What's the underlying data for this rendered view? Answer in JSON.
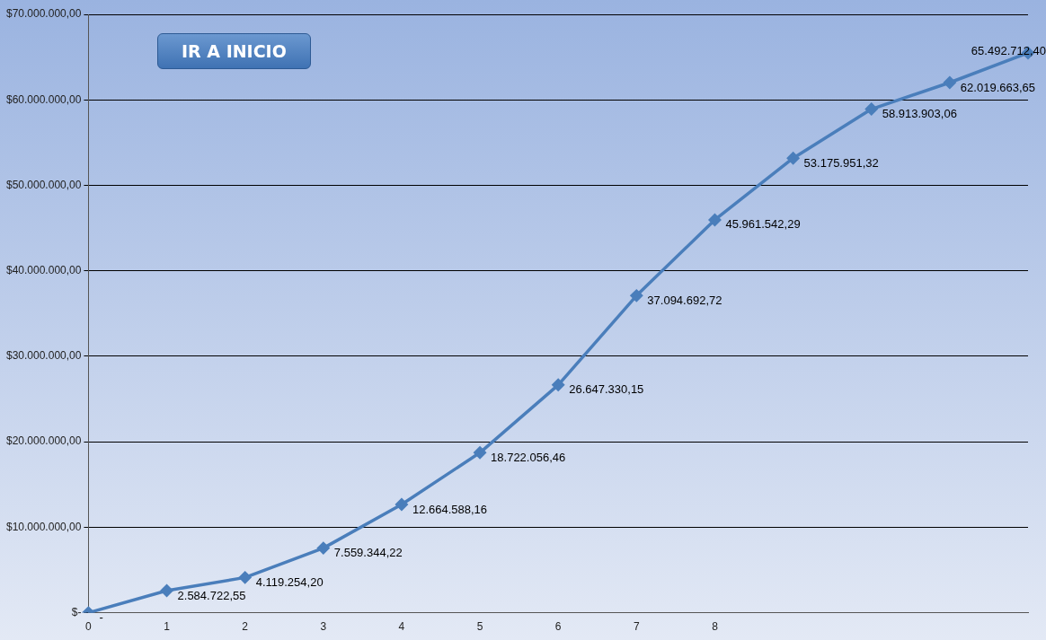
{
  "chart_data": {
    "type": "line",
    "categories": [
      "0",
      "1",
      "2",
      "3",
      "4",
      "5",
      "6",
      "7",
      "8",
      null,
      null,
      null,
      null
    ],
    "series": [
      {
        "color": "#4a7ebb",
        "values": [
          0,
          2584722.55,
          4119254.2,
          7559344.22,
          12664588.16,
          18722056.46,
          26647330.15,
          37094692.72,
          45961542.29,
          53175951.32,
          58913903.06,
          62019663.65,
          65492712.4
        ],
        "value_labels": [
          "-",
          "2.584.722,55",
          "4.119.254,20",
          "7.559.344,22",
          "12.664.588,16",
          "18.722.056,46",
          "26.647.330,15",
          "37.094.692,72",
          "45.961.542,29",
          "53.175.951,32",
          "58.913.903,06",
          "62.019.663,65",
          "65.492.712,40"
        ]
      }
    ],
    "ylim": [
      0,
      70000000
    ],
    "yticks": [
      {
        "value": 0,
        "label": "$-"
      },
      {
        "value": 10000000,
        "label": "$10.000.000,00"
      },
      {
        "value": 20000000,
        "label": "$20.000.000,00"
      },
      {
        "value": 30000000,
        "label": "$30.000.000,00"
      },
      {
        "value": 40000000,
        "label": "$40.000.000,00"
      },
      {
        "value": 50000000,
        "label": "$50.000.000,00"
      },
      {
        "value": 60000000,
        "label": "$60.000.000,00"
      },
      {
        "value": 70000000,
        "label": "$70.000.000,00"
      }
    ],
    "annotations": [
      "IR A INICIO"
    ],
    "grid": "y",
    "legend": false,
    "marker": "diamond",
    "line_style": "solid"
  }
}
